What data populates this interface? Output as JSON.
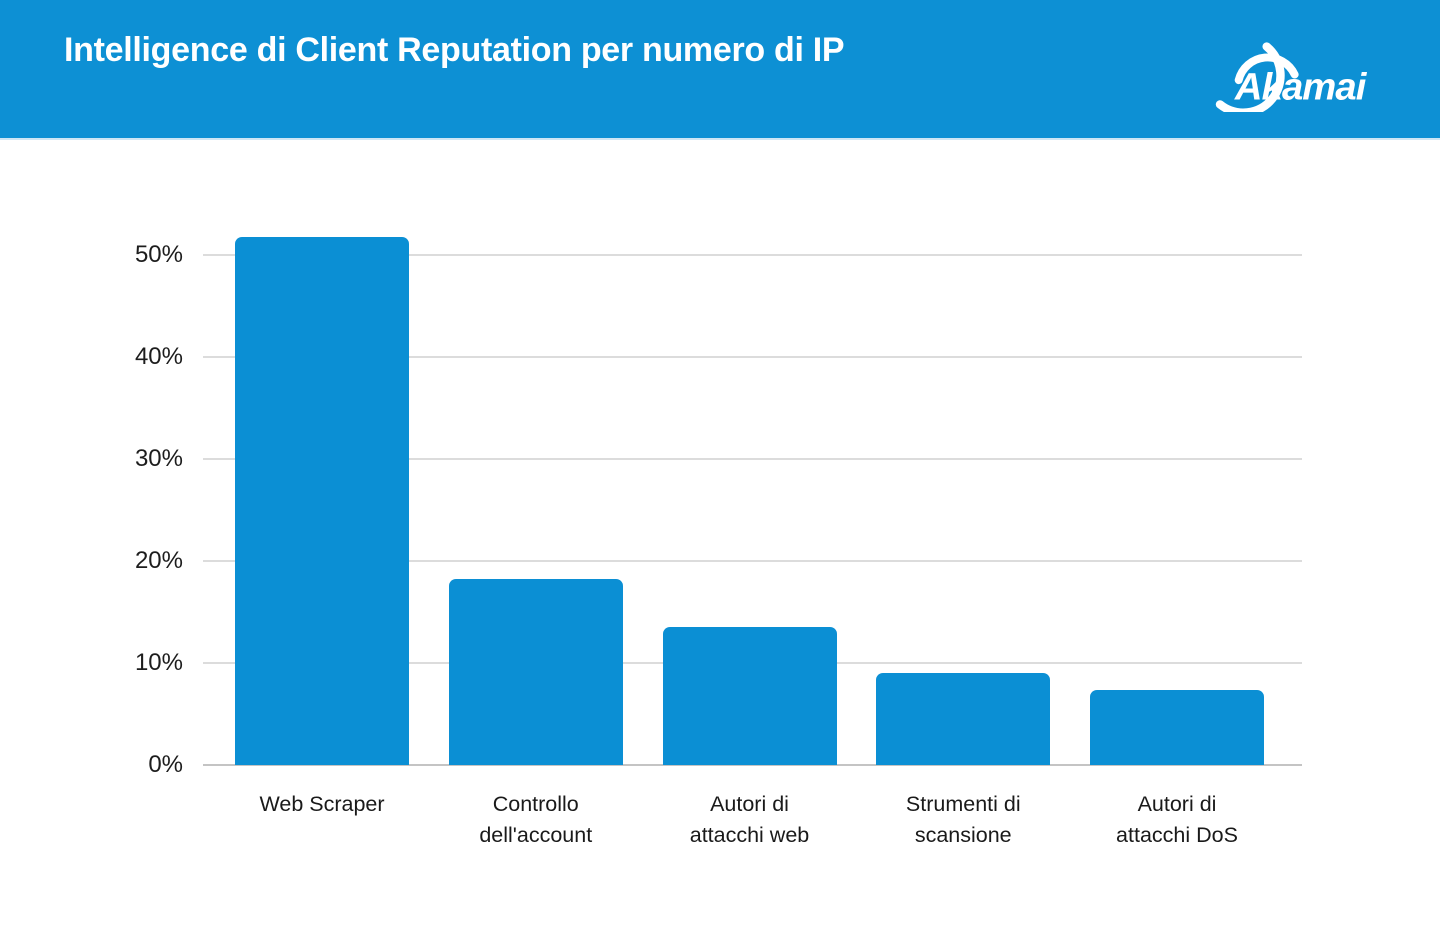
{
  "header": {
    "title": "Intelligence di Client Reputation per numero di IP",
    "logo_text": "Akamai"
  },
  "colors": {
    "brand_blue": "#0d90d4",
    "bar_blue": "#0b8fd4",
    "header_divider": "#cde6f5",
    "gridline_gray": "#dcdcdc",
    "baseline_gray": "#c4c4c4",
    "axis_text": "#1d1d1d",
    "title_text": "#ffffff",
    "background": "#ffffff"
  },
  "chart_data": {
    "type": "bar",
    "title": "Intelligence di Client Reputation per numero di IP",
    "categories": [
      "Web Scraper",
      "Controllo dell'account",
      "Autori di attacchi web",
      "Strumenti di scansione",
      "Autori di attacchi DoS"
    ],
    "category_lines": [
      [
        "Web Scraper"
      ],
      [
        "Controllo",
        "dell'account"
      ],
      [
        "Autori di",
        "attacchi web"
      ],
      [
        "Strumenti di",
        "scansione"
      ],
      [
        "Autori di",
        "attacchi DoS"
      ]
    ],
    "values": [
      51.8,
      18.2,
      13.5,
      9.0,
      7.4
    ],
    "unit": "%",
    "xlabel": "",
    "ylabel": "",
    "ylim": [
      0,
      55
    ],
    "ytick_values": [
      0,
      10,
      20,
      30,
      40,
      50
    ],
    "yticks": [
      "0%",
      "10%",
      "20%",
      "30%",
      "40%",
      "50%"
    ],
    "grid": true,
    "legend": false
  }
}
